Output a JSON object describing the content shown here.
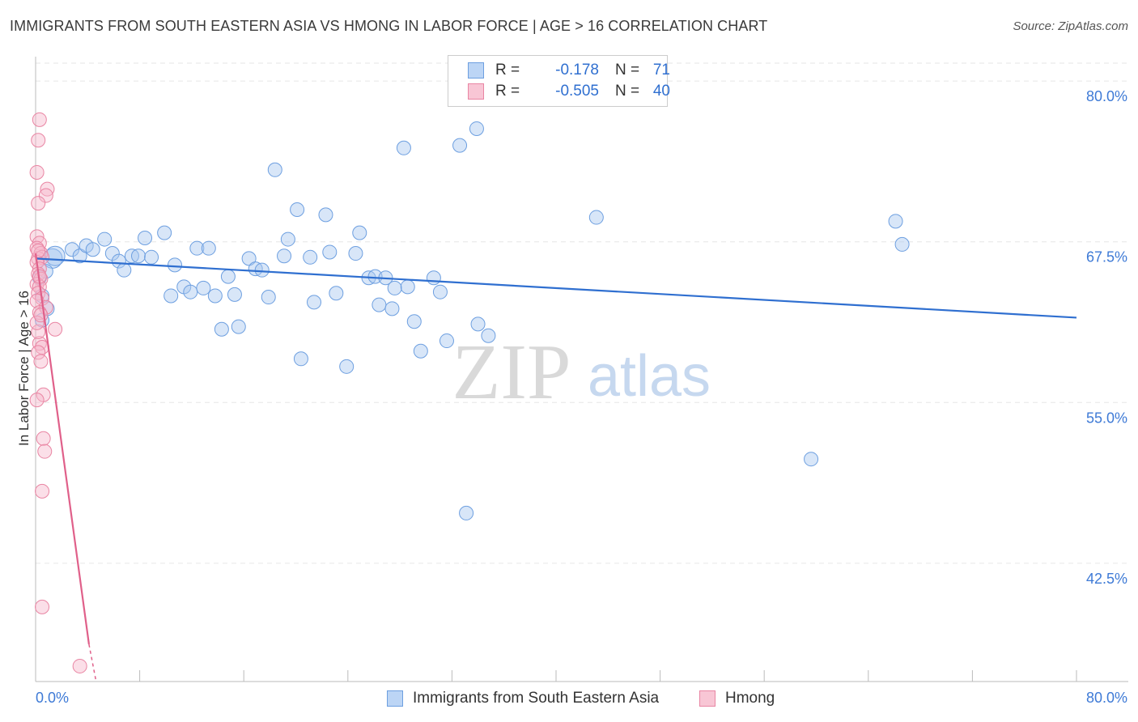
{
  "chart_data": {
    "type": "scatter",
    "title": "IMMIGRANTS FROM SOUTH EASTERN ASIA VS HMONG IN LABOR FORCE | AGE > 16 CORRELATION CHART",
    "source": "Source: ZipAtlas.com",
    "xlabel": "",
    "ylabel": "In Labor Force | Age > 16",
    "xlim": [
      0,
      80
    ],
    "ylim": [
      33.3,
      81.9
    ],
    "x_tick_labels": [
      "0.0%",
      "80.0%"
    ],
    "y_ticks": [
      42.5,
      55.0,
      67.5,
      80.0
    ],
    "y_tick_labels": [
      "42.5%",
      "55.0%",
      "67.5%",
      "80.0%"
    ],
    "grid": true,
    "watermark": {
      "zip": "ZIP",
      "atlas": "atlas"
    },
    "legend_stats": [
      {
        "r_label": "R =",
        "r_value": "-0.178",
        "n_label": "N =",
        "n_value": "71"
      },
      {
        "r_label": "R =",
        "r_value": "-0.505",
        "n_label": "N =",
        "n_value": "40"
      }
    ],
    "series": [
      {
        "name": "Immigrants from South Eastern Asia",
        "color": "#a9c8f0",
        "stroke": "#6d9fe0",
        "trend_color": "#2f6fd0",
        "trend": {
          "x0": 0,
          "y0": 66.2,
          "x1": 80,
          "y1": 61.6
        },
        "points": [
          [
            1.3,
            66.2
          ],
          [
            1.5,
            66.4
          ],
          [
            0.8,
            65.2
          ],
          [
            0.3,
            64.7
          ],
          [
            0.5,
            63.3
          ],
          [
            0.5,
            61.4
          ],
          [
            0.9,
            62.3
          ],
          [
            2.8,
            66.9
          ],
          [
            3.4,
            66.4
          ],
          [
            3.9,
            67.2
          ],
          [
            4.4,
            66.9
          ],
          [
            5.3,
            67.7
          ],
          [
            5.9,
            66.6
          ],
          [
            6.4,
            66.0
          ],
          [
            6.8,
            65.3
          ],
          [
            7.4,
            66.4
          ],
          [
            7.9,
            66.4
          ],
          [
            8.4,
            67.8
          ],
          [
            8.9,
            66.3
          ],
          [
            9.9,
            68.2
          ],
          [
            10.7,
            65.7
          ],
          [
            10.4,
            63.3
          ],
          [
            11.4,
            64.0
          ],
          [
            11.9,
            63.6
          ],
          [
            12.4,
            67.0
          ],
          [
            12.9,
            63.9
          ],
          [
            13.3,
            67.0
          ],
          [
            13.8,
            63.3
          ],
          [
            14.3,
            60.7
          ],
          [
            14.8,
            64.8
          ],
          [
            15.3,
            63.4
          ],
          [
            15.6,
            60.9
          ],
          [
            16.4,
            66.2
          ],
          [
            16.9,
            65.4
          ],
          [
            17.4,
            65.3
          ],
          [
            17.9,
            63.2
          ],
          [
            18.4,
            73.1
          ],
          [
            19.1,
            66.4
          ],
          [
            19.4,
            67.7
          ],
          [
            20.1,
            70.0
          ],
          [
            20.4,
            58.4
          ],
          [
            21.1,
            66.3
          ],
          [
            21.4,
            62.8
          ],
          [
            22.3,
            69.6
          ],
          [
            22.6,
            66.7
          ],
          [
            23.1,
            63.5
          ],
          [
            23.9,
            57.8
          ],
          [
            24.6,
            66.6
          ],
          [
            24.9,
            68.2
          ],
          [
            25.6,
            64.7
          ],
          [
            26.1,
            64.8
          ],
          [
            26.4,
            62.6
          ],
          [
            26.9,
            64.7
          ],
          [
            27.4,
            62.3
          ],
          [
            27.6,
            63.9
          ],
          [
            28.6,
            64.0
          ],
          [
            29.1,
            61.3
          ],
          [
            29.6,
            59.0
          ],
          [
            30.6,
            64.7
          ],
          [
            31.1,
            63.6
          ],
          [
            31.6,
            59.8
          ],
          [
            32.6,
            75.0
          ],
          [
            33.1,
            46.4
          ],
          [
            33.9,
            76.3
          ],
          [
            34.0,
            61.1
          ],
          [
            34.8,
            60.2
          ],
          [
            43.1,
            69.4
          ],
          [
            59.6,
            50.6
          ],
          [
            66.1,
            69.1
          ],
          [
            66.6,
            67.3
          ],
          [
            28.3,
            74.8
          ]
        ],
        "sizes": {
          "0": 12,
          "1": 12
        }
      },
      {
        "name": "Hmong",
        "color": "#f6b8cb",
        "stroke": "#e985a3",
        "trend_color": "#e0608a",
        "trend": {
          "x0": 0,
          "y0": 66.6,
          "x1": 4.1,
          "y1": 36.2
        },
        "trend_dashed": {
          "x0": 4.1,
          "y0": 36.2,
          "x1": 4.65,
          "y1": 33.3
        },
        "points": [
          [
            0.3,
            77.0
          ],
          [
            0.2,
            75.4
          ],
          [
            0.1,
            72.9
          ],
          [
            0.9,
            71.6
          ],
          [
            0.8,
            71.1
          ],
          [
            0.2,
            70.5
          ],
          [
            0.1,
            67.9
          ],
          [
            0.3,
            67.4
          ],
          [
            0.1,
            67.0
          ],
          [
            0.4,
            66.6
          ],
          [
            0.2,
            66.2
          ],
          [
            0.5,
            66.3
          ],
          [
            0.1,
            65.9
          ],
          [
            0.3,
            65.4
          ],
          [
            0.2,
            65.0
          ],
          [
            0.4,
            64.6
          ],
          [
            0.1,
            64.2
          ],
          [
            0.3,
            64.0
          ],
          [
            0.2,
            63.5
          ],
          [
            0.5,
            63.1
          ],
          [
            0.1,
            62.9
          ],
          [
            0.8,
            62.4
          ],
          [
            0.3,
            62.0
          ],
          [
            1.5,
            60.7
          ],
          [
            0.3,
            59.6
          ],
          [
            0.5,
            59.3
          ],
          [
            0.2,
            58.9
          ],
          [
            0.4,
            58.2
          ],
          [
            0.6,
            55.6
          ],
          [
            0.1,
            55.2
          ],
          [
            0.6,
            52.2
          ],
          [
            0.7,
            51.2
          ],
          [
            0.5,
            48.1
          ],
          [
            0.5,
            39.1
          ],
          [
            3.4,
            34.5
          ],
          [
            0.2,
            60.5
          ],
          [
            0.1,
            61.2
          ],
          [
            0.4,
            61.8
          ],
          [
            0.3,
            64.8
          ],
          [
            0.2,
            66.8
          ]
        ]
      }
    ]
  }
}
